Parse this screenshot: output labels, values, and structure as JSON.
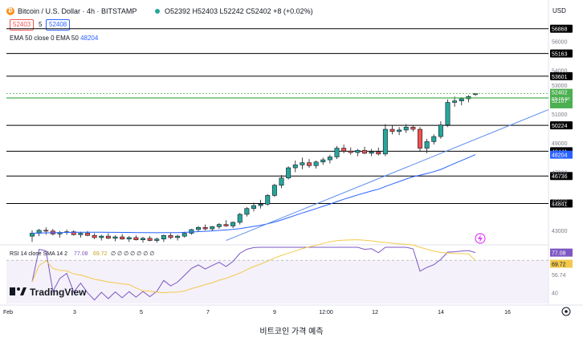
{
  "header": {
    "title": "Bitcoin / U.S. Dollar · 4h · BITSTAMP",
    "ohlc": "O52392 H52403 L52242 C52402 +8 (+0.02%)",
    "bid": "52403",
    "spread": "5",
    "ask": "52408",
    "ema_label": "EMA 50 close 0 EMA 50",
    "ema_value": "48204",
    "coin_icon": "bitcoin-icon"
  },
  "currency": "USD",
  "caption": "비트코인 가격 예측",
  "colors": {
    "up": "#26a69a",
    "down": "#ef5350",
    "ema": "#2962ff",
    "trend": "#5b8def",
    "rsi": "#7e57c2",
    "rsi_ma": "#f2c94c",
    "resistance": "#000000",
    "price_line": "#4caf50"
  },
  "chart_data": {
    "type": "candlestick",
    "timeframe": "4h",
    "x_ticks": [
      "Feb",
      "3",
      "5",
      "7",
      "9",
      "12:00",
      "12",
      "14",
      "16"
    ],
    "y_ticks": [
      56000,
      54000,
      53000,
      51000,
      49000,
      47000,
      45000,
      43000
    ],
    "ylim": [
      42000,
      58400
    ],
    "levels": [
      56868,
      55163,
      53601,
      50224,
      48441,
      46736,
      44841
    ],
    "current_price": 52402,
    "price_countdown": "03:15:01",
    "support_label": 52107,
    "ema_last": 48204,
    "candles": [
      [
        42600,
        43000,
        42200,
        42800
      ],
      [
        42800,
        43100,
        42600,
        43000
      ],
      [
        43000,
        43200,
        42700,
        42950
      ],
      [
        42950,
        43100,
        42650,
        42750
      ],
      [
        42750,
        42950,
        42500,
        42850
      ],
      [
        42850,
        43050,
        42700,
        42900
      ],
      [
        42900,
        43000,
        42650,
        42700
      ],
      [
        42700,
        42900,
        42500,
        42800
      ],
      [
        42800,
        42950,
        42600,
        42650
      ],
      [
        42650,
        42800,
        42400,
        42500
      ],
      [
        42500,
        42700,
        42300,
        42600
      ],
      [
        42600,
        42800,
        42400,
        42450
      ],
      [
        42450,
        42650,
        42250,
        42550
      ],
      [
        42550,
        42750,
        42350,
        42400
      ],
      [
        42400,
        42600,
        42200,
        42500
      ],
      [
        42500,
        42650,
        42300,
        42350
      ],
      [
        42350,
        42550,
        42150,
        42450
      ],
      [
        42450,
        42600,
        42250,
        42300
      ],
      [
        42300,
        42500,
        42150,
        42400
      ],
      [
        42400,
        42700,
        42200,
        42650
      ],
      [
        42650,
        42800,
        42400,
        42500
      ],
      [
        42500,
        42700,
        42300,
        42600
      ],
      [
        42600,
        42900,
        42500,
        42800
      ],
      [
        42800,
        43100,
        42700,
        43050
      ],
      [
        43050,
        43300,
        42900,
        43200
      ],
      [
        43200,
        43400,
        43000,
        43100
      ],
      [
        43100,
        43300,
        42950,
        43250
      ],
      [
        43250,
        43500,
        43100,
        43400
      ],
      [
        43400,
        43700,
        43250,
        43300
      ],
      [
        43300,
        43600,
        43150,
        43550
      ],
      [
        43550,
        44200,
        43400,
        44100
      ],
      [
        44100,
        44600,
        43950,
        44500
      ],
      [
        44500,
        44900,
        44300,
        44700
      ],
      [
        44700,
        45100,
        44500,
        44800
      ],
      [
        44800,
        45500,
        44700,
        45400
      ],
      [
        45400,
        46200,
        45300,
        46100
      ],
      [
        46100,
        46800,
        45900,
        46600
      ],
      [
        46600,
        47400,
        46500,
        47300
      ],
      [
        47300,
        47800,
        47000,
        47500
      ],
      [
        47500,
        48000,
        47200,
        47650
      ],
      [
        47650,
        47900,
        47300,
        47450
      ],
      [
        47450,
        47800,
        47250,
        47700
      ],
      [
        47700,
        48000,
        47500,
        47850
      ],
      [
        47850,
        48200,
        47600,
        48050
      ],
      [
        48050,
        48800,
        47900,
        48650
      ],
      [
        48650,
        48900,
        48300,
        48450
      ],
      [
        48450,
        48700,
        48200,
        48350
      ],
      [
        48350,
        48600,
        48100,
        48500
      ],
      [
        48500,
        48750,
        48250,
        48300
      ],
      [
        48300,
        48600,
        48100,
        48400
      ],
      [
        48400,
        48700,
        48150,
        48250
      ],
      [
        48250,
        50300,
        48100,
        49950
      ],
      [
        49950,
        50200,
        49600,
        49800
      ],
      [
        49800,
        50100,
        49550,
        49900
      ],
      [
        49900,
        50300,
        49700,
        50100
      ],
      [
        50100,
        50250,
        49800,
        49950
      ],
      [
        49950,
        50100,
        48400,
        48650
      ],
      [
        48650,
        49300,
        48300,
        49100
      ],
      [
        49100,
        49600,
        48900,
        49450
      ],
      [
        49450,
        50500,
        49300,
        50250
      ],
      [
        50250,
        52000,
        50100,
        51800
      ],
      [
        51800,
        52200,
        51500,
        51900
      ],
      [
        51900,
        52150,
        51600,
        52050
      ],
      [
        52050,
        52300,
        51800,
        52200
      ],
      [
        52392,
        52403,
        52242,
        52402
      ]
    ],
    "rsi": {
      "label": "RSI 14 close SMA 14 2",
      "rsi_value": 77.08,
      "sma_value": 69.72,
      "placeholders": "∅ ∅ ∅ ∅ ∅ ∅ ∅",
      "y_ticks": [
        78.55,
        56.74,
        40
      ],
      "ylim": [
        30,
        82
      ],
      "upper_band": 70,
      "lower_band": 30
    }
  },
  "brand": {
    "name": "TradingView",
    "logo": "tradingview-logo-icon"
  },
  "icons": {
    "settings": "settings-gear-icon",
    "replay": "lightning-icon"
  }
}
